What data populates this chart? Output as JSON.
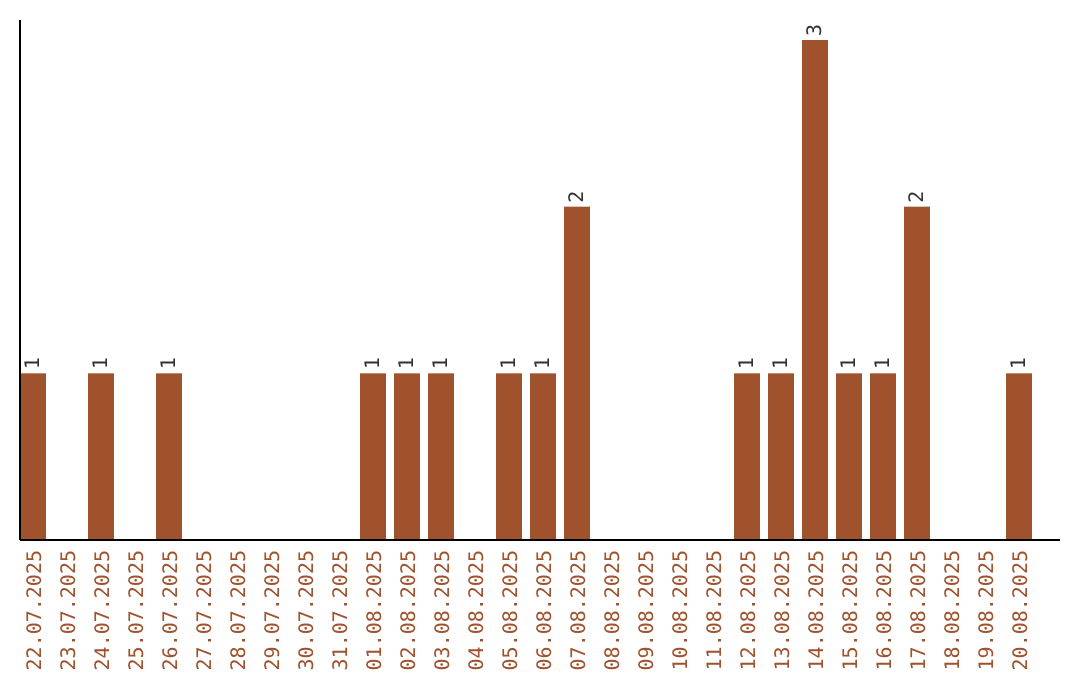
{
  "chart_data": {
    "type": "bar",
    "categories": [
      "22.07.2025",
      "23.07.2025",
      "24.07.2025",
      "25.07.2025",
      "26.07.2025",
      "27.07.2025",
      "28.07.2025",
      "29.07.2025",
      "30.07.2025",
      "31.07.2025",
      "01.08.2025",
      "02.08.2025",
      "03.08.2025",
      "04.08.2025",
      "05.08.2025",
      "06.08.2025",
      "07.08.2025",
      "08.08.2025",
      "09.08.2025",
      "10.08.2025",
      "11.08.2025",
      "12.08.2025",
      "13.08.2025",
      "14.08.2025",
      "15.08.2025",
      "16.08.2025",
      "17.08.2025",
      "18.08.2025",
      "19.08.2025",
      "20.08.2025"
    ],
    "values": [
      1,
      0,
      1,
      0,
      1,
      0,
      0,
      0,
      0,
      0,
      1,
      1,
      1,
      0,
      1,
      1,
      2,
      0,
      0,
      0,
      0,
      1,
      1,
      3,
      1,
      1,
      2,
      0,
      0,
      1
    ],
    "value_labels": [
      "1",
      null,
      "1",
      null,
      "1",
      null,
      null,
      null,
      null,
      null,
      "1",
      "1",
      "1",
      null,
      "1",
      "1",
      "2",
      null,
      null,
      null,
      null,
      "1",
      "1",
      "3",
      "1",
      "1",
      "2",
      null,
      null,
      "1"
    ],
    "color": "#a0522d",
    "ylim": [
      0,
      3
    ],
    "tick_labels": "x"
  }
}
